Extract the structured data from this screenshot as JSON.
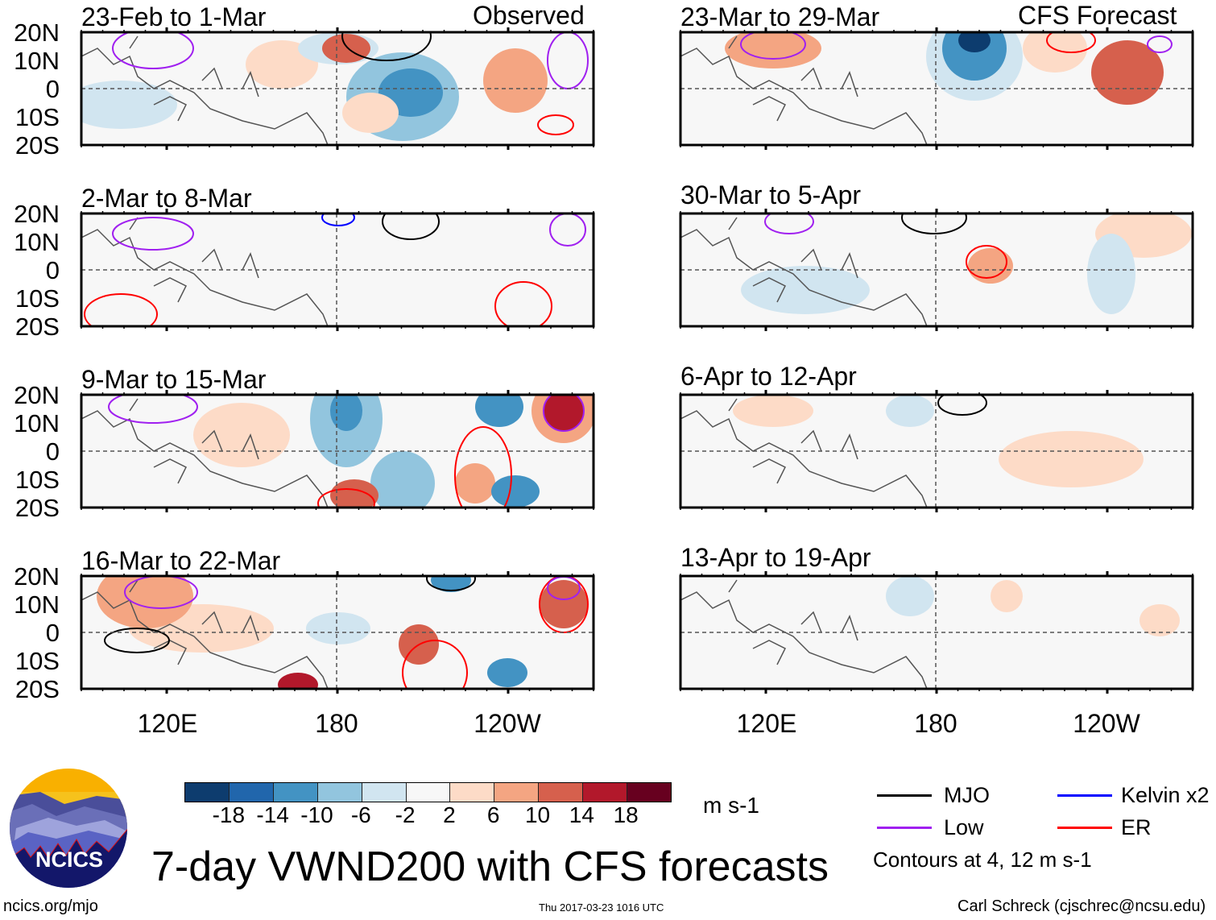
{
  "left_column_label": "Observed",
  "right_column_label": "CFS Forecast",
  "panels_left": [
    {
      "title": "23-Feb to 1-Mar"
    },
    {
      "title": "2-Mar to 8-Mar"
    },
    {
      "title": "9-Mar to 15-Mar"
    },
    {
      "title": "16-Mar to 22-Mar"
    }
  ],
  "panels_right": [
    {
      "title": "23-Mar to 29-Mar"
    },
    {
      "title": "30-Mar to 5-Apr"
    },
    {
      "title": "6-Apr to 12-Apr"
    },
    {
      "title": "13-Apr to 19-Apr"
    }
  ],
  "lat_labels": [
    "20N",
    "10N",
    "0",
    "10S",
    "20S"
  ],
  "lon_labels": [
    "120E",
    "180",
    "120W"
  ],
  "colorbar": {
    "colors": [
      "#0d3c6e",
      "#2166ac",
      "#4393c3",
      "#92c5de",
      "#d1e5f0",
      "#f7f7f7",
      "#fddbc7",
      "#f4a582",
      "#d6604d",
      "#b2182b",
      "#67001f"
    ],
    "labels": [
      "-18",
      "-14",
      "-10",
      "-6",
      "-2",
      "2",
      "6",
      "10",
      "14",
      "18"
    ],
    "units": "m s-1"
  },
  "legend": {
    "items": [
      {
        "label": "MJO",
        "color": "#000000"
      },
      {
        "label": "Kelvin x2",
        "color": "#0000ff"
      },
      {
        "label": "Low",
        "color": "#a020f0"
      },
      {
        "label": "ER",
        "color": "#ff0000"
      }
    ],
    "contours_note": "Contours at 4, 12 m s-1"
  },
  "logo_text": "NCICS",
  "main_title": "7-day VWND200 with CFS forecasts",
  "footer": {
    "url": "ncics.org/mjo",
    "timestamp": "Thu 2017-03-23 1016 UTC",
    "author": "Carl Schreck (cjschrec@ncsu.edu)"
  }
}
